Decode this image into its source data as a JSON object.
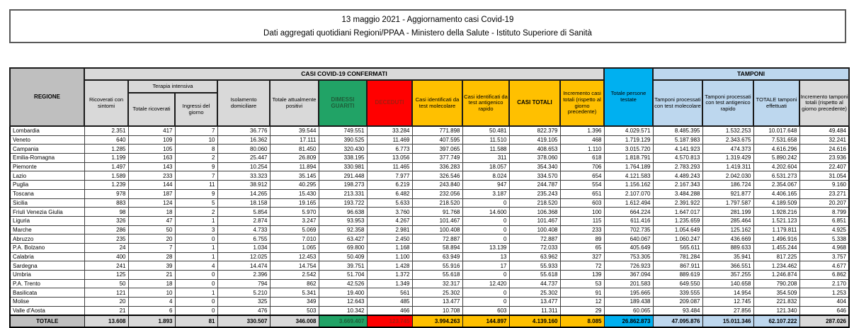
{
  "title": {
    "line1": "13 maggio 2021 - Aggiornamento casi Covid-19",
    "line2": "Dati aggregati quotidiani Regioni/PPAA - Ministero della Salute - Istituto Superiore di Sanità"
  },
  "table": {
    "section_headers": {
      "confirmed": "CASI COVID-19 CONFERMATI",
      "tamponi": "TAMPONI",
      "terapia_intensiva": "Terapia intensiva"
    },
    "columns": {
      "regione": "REGIONE",
      "ricoverati": "Ricoverati con sintomi",
      "ti_totale": "Totale ricoverati",
      "ti_ingressi": "Ingressi del giorno",
      "isolamento": "Isolamento domiciliare",
      "attualmente_positivi": "Totale attualmente positivi",
      "dimessi": "DIMESSI GUARITI",
      "deceduti": "DECEDUTI",
      "casi_molecolare": "Casi identificati da test molecolare",
      "casi_antigenico": "Casi identificati da test antigenico rapido",
      "casi_totali": "CASI TOTALI",
      "incremento_casi": "Incremento casi totali (rispetto al giorno precedente)",
      "persone_testate": "Totale persone testate",
      "tamponi_molecolare": "Tamponi processati con test molecolare",
      "tamponi_antigenico": "Tamponi processati con test antigenico rapido",
      "tamponi_totale": "TOTALE tamponi effettuati",
      "incremento_tamponi": "Incremento tamponi totali (rispetto al giorno precedente)"
    },
    "rows": [
      [
        "Lombardia",
        "2.351",
        "417",
        "7",
        "36.776",
        "39.544",
        "749.551",
        "33.284",
        "771.898",
        "50.481",
        "822.379",
        "1.396",
        "4.029.571",
        "8.485.395",
        "1.532.253",
        "10.017.648",
        "49.484"
      ],
      [
        "Veneto",
        "640",
        "109",
        "10",
        "16.362",
        "17.111",
        "390.525",
        "11.469",
        "407.595",
        "11.510",
        "419.105",
        "468",
        "1.719.129",
        "5.187.983",
        "2.343.675",
        "7.531.658",
        "32.241"
      ],
      [
        "Campania",
        "1.285",
        "105",
        "8",
        "80.060",
        "81.450",
        "320.430",
        "6.773",
        "397.065",
        "11.588",
        "408.653",
        "1.110",
        "3.015.720",
        "4.141.923",
        "474.373",
        "4.616.296",
        "24.616"
      ],
      [
        "Emilia-Romagna",
        "1.199",
        "163",
        "2",
        "25.447",
        "26.809",
        "338.195",
        "13.056",
        "377.749",
        "311",
        "378.060",
        "618",
        "1.818.791",
        "4.570.813",
        "1.319.429",
        "5.890.242",
        "23.936"
      ],
      [
        "Piemonte",
        "1.497",
        "143",
        "9",
        "10.254",
        "11.894",
        "330.981",
        "11.465",
        "336.283",
        "18.057",
        "354.340",
        "706",
        "1.764.189",
        "2.783.293",
        "1.419.311",
        "4.202.604",
        "22.407"
      ],
      [
        "Lazio",
        "1.589",
        "233",
        "7",
        "33.323",
        "35.145",
        "291.448",
        "7.977",
        "326.546",
        "8.024",
        "334.570",
        "654",
        "4.121.583",
        "4.489.243",
        "2.042.030",
        "6.531.273",
        "31.054"
      ],
      [
        "Puglia",
        "1.239",
        "144",
        "11",
        "38.912",
        "40.295",
        "198.273",
        "6.219",
        "243.840",
        "947",
        "244.787",
        "554",
        "1.156.162",
        "2.167.343",
        "186.724",
        "2.354.067",
        "9.160"
      ],
      [
        "Toscana",
        "978",
        "187",
        "9",
        "14.265",
        "15.430",
        "213.331",
        "6.482",
        "232.056",
        "3.187",
        "235.243",
        "651",
        "2.107.070",
        "3.484.288",
        "921.877",
        "4.406.165",
        "23.271"
      ],
      [
        "Sicilia",
        "883",
        "124",
        "5",
        "18.158",
        "19.165",
        "193.722",
        "5.633",
        "218.520",
        "0",
        "218.520",
        "603",
        "1.612.494",
        "2.391.922",
        "1.797.587",
        "4.189.509",
        "20.207"
      ],
      [
        "Friuli Venezia Giulia",
        "98",
        "18",
        "2",
        "5.854",
        "5.970",
        "96.638",
        "3.760",
        "91.768",
        "14.600",
        "106.368",
        "100",
        "664.224",
        "1.647.017",
        "281.199",
        "1.928.216",
        "8.799"
      ],
      [
        "Liguria",
        "326",
        "47",
        "1",
        "2.874",
        "3.247",
        "93.953",
        "4.267",
        "101.467",
        "0",
        "101.467",
        "115",
        "611.416",
        "1.235.659",
        "285.464",
        "1.521.123",
        "6.851"
      ],
      [
        "Marche",
        "286",
        "50",
        "3",
        "4.733",
        "5.069",
        "92.358",
        "2.981",
        "100.408",
        "0",
        "100.408",
        "233",
        "702.735",
        "1.054.649",
        "125.162",
        "1.179.811",
        "4.925"
      ],
      [
        "Abruzzo",
        "235",
        "20",
        "0",
        "6.755",
        "7.010",
        "63.427",
        "2.450",
        "72.887",
        "0",
        "72.887",
        "89",
        "640.067",
        "1.060.247",
        "436.669",
        "1.496.916",
        "5.338"
      ],
      [
        "P.A. Bolzano",
        "24",
        "7",
        "1",
        "1.034",
        "1.065",
        "69.800",
        "1.168",
        "58.894",
        "13.139",
        "72.033",
        "65",
        "405.649",
        "565.611",
        "889.633",
        "1.455.244",
        "4.968"
      ],
      [
        "Calabria",
        "400",
        "28",
        "1",
        "12.025",
        "12.453",
        "50.409",
        "1.100",
        "63.949",
        "13",
        "63.962",
        "327",
        "753.305",
        "781.284",
        "35.941",
        "817.225",
        "3.757"
      ],
      [
        "Sardegna",
        "241",
        "39",
        "4",
        "14.474",
        "14.754",
        "39.751",
        "1.428",
        "55.916",
        "17",
        "55.933",
        "72",
        "726.923",
        "867.911",
        "366.551",
        "1.234.462",
        "4.677"
      ],
      [
        "Umbria",
        "125",
        "21",
        "0",
        "2.396",
        "2.542",
        "51.704",
        "1.372",
        "55.618",
        "0",
        "55.618",
        "139",
        "367.094",
        "889.619",
        "357.255",
        "1.246.874",
        "6.862"
      ],
      [
        "P.A. Trento",
        "50",
        "18",
        "0",
        "794",
        "862",
        "42.526",
        "1.349",
        "32.317",
        "12.420",
        "44.737",
        "53",
        "201.583",
        "649.550",
        "140.658",
        "790.208",
        "2.170"
      ],
      [
        "Basilicata",
        "121",
        "10",
        "1",
        "5.210",
        "5.341",
        "19.400",
        "561",
        "25.302",
        "0",
        "25.302",
        "91",
        "195.665",
        "339.555",
        "14.954",
        "354.509",
        "1.253"
      ],
      [
        "Molise",
        "20",
        "4",
        "0",
        "325",
        "349",
        "12.643",
        "485",
        "13.477",
        "0",
        "13.477",
        "12",
        "189.438",
        "209.087",
        "12.745",
        "221.832",
        "404"
      ],
      [
        "Valle d'Aosta",
        "21",
        "6",
        "0",
        "476",
        "503",
        "10.342",
        "466",
        "10.708",
        "603",
        "11.311",
        "29",
        "60.065",
        "93.484",
        "27.856",
        "121.340",
        "646"
      ]
    ],
    "totale": [
      "TOTALE",
      "13.608",
      "1.893",
      "81",
      "330.507",
      "346.008",
      "3.669.407",
      "123.745",
      "3.994.263",
      "144.897",
      "4.139.160",
      "8.085",
      "26.862.873",
      "47.095.876",
      "15.011.346",
      "62.107.222",
      "287.026"
    ]
  },
  "colors": {
    "gray-mid": "#BFBFBF",
    "gray-light": "#D9D9D9",
    "green": "#21A366",
    "green-dark": "#1F5C38",
    "red": "#FF0000",
    "red-dark": "#A61C0F",
    "amber": "#FFC000",
    "cyan": "#00B0F0",
    "blue-light": "#BDD7EE"
  }
}
